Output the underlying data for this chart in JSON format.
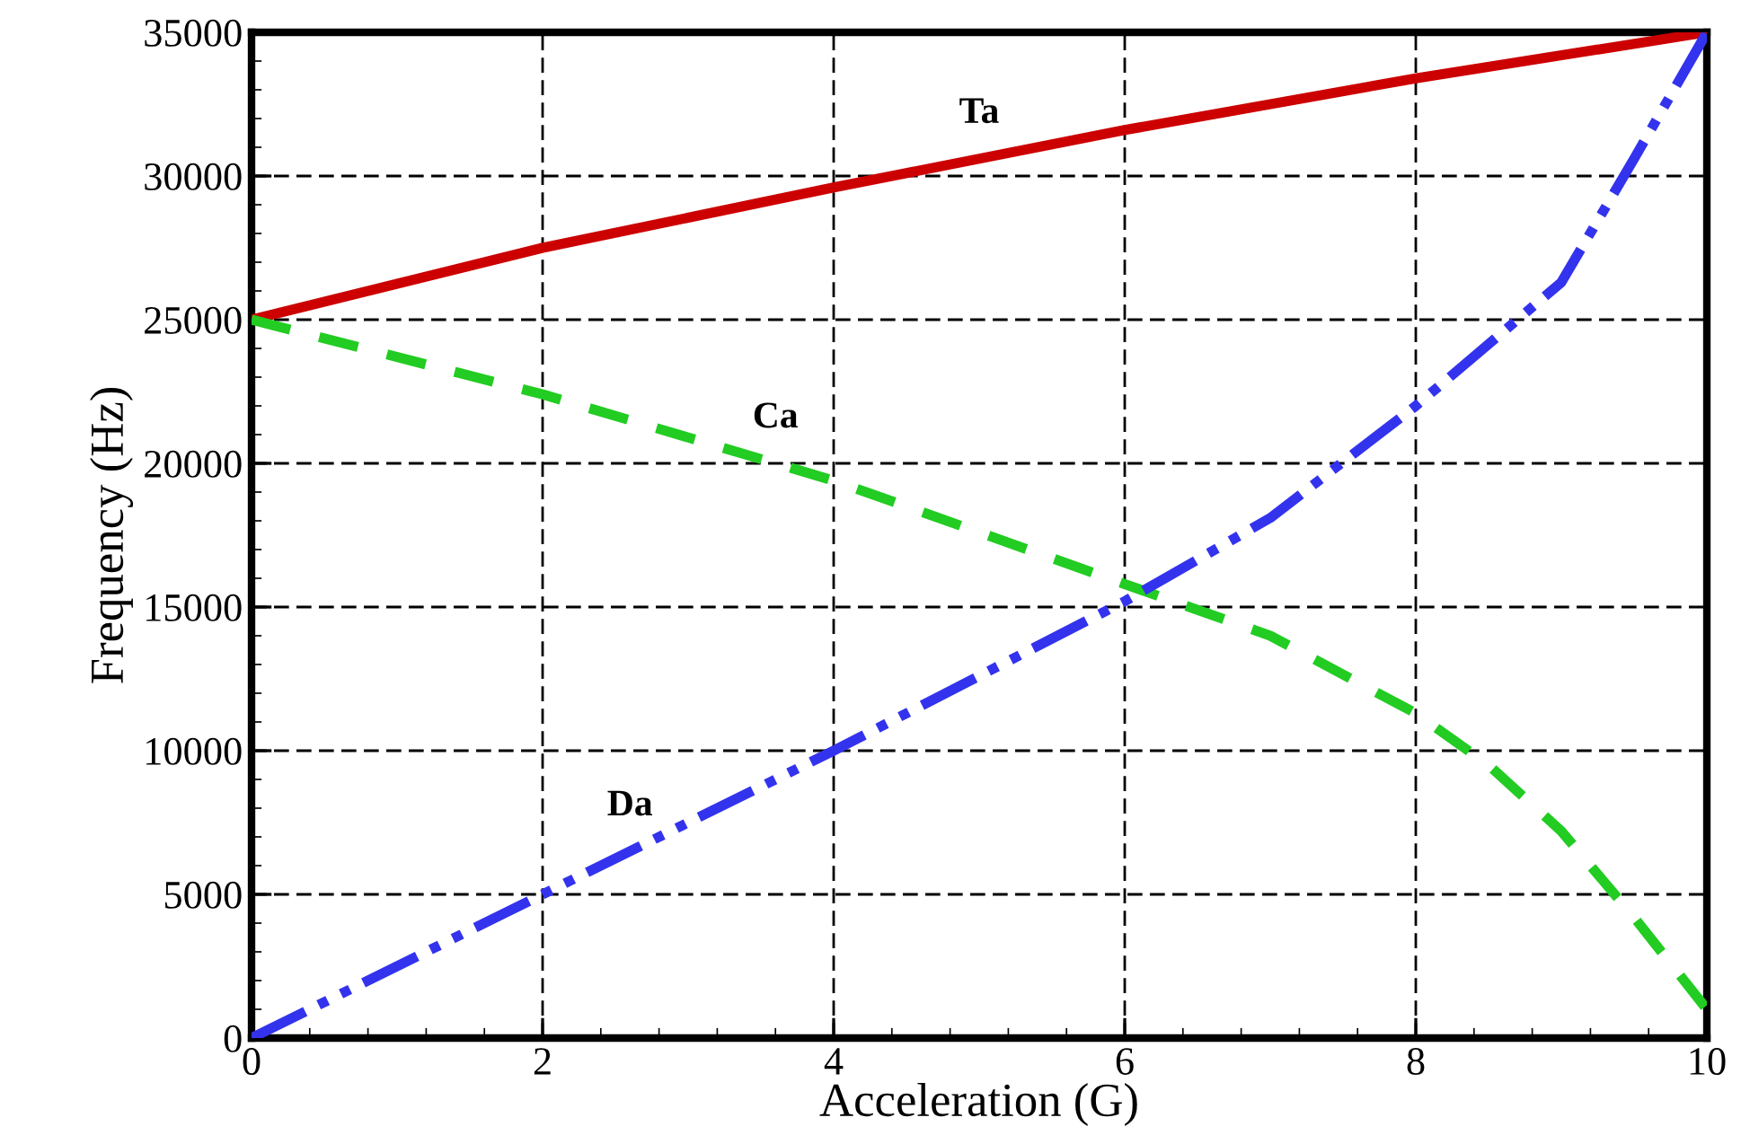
{
  "chart_data": {
    "type": "line",
    "xlabel": "Acceleration (G)",
    "ylabel": "Frequency (Hz)",
    "xlim": [
      0,
      10
    ],
    "xticks": [
      0,
      2,
      4,
      6,
      8,
      10
    ],
    "ylim": [
      0,
      35000
    ],
    "yticks": [
      0,
      5000,
      10000,
      15000,
      20000,
      25000,
      30000,
      35000
    ],
    "grid": true,
    "marker": "none",
    "series": [
      {
        "name": "Ta",
        "color": "#cc0000",
        "line_style": "solid",
        "x": [
          0,
          2,
          4,
          6,
          8,
          10
        ],
        "values": [
          25000,
          27500,
          29600,
          31600,
          33400,
          35000
        ]
      },
      {
        "name": "Ca",
        "color": "#22cc22",
        "line_style": "dashed",
        "x": [
          0,
          2,
          4,
          6,
          7,
          8,
          8.5,
          9,
          9.5,
          10
        ],
        "values": [
          25000,
          22400,
          19400,
          15800,
          14000,
          11300,
          9500,
          7200,
          4200,
          1000
        ]
      },
      {
        "name": "Da",
        "color": "#3333ee",
        "line_style": "dashdotdot",
        "x": [
          0,
          2,
          4,
          6,
          7,
          8,
          9,
          9.5,
          10
        ],
        "values": [
          0,
          5000,
          10000,
          15200,
          18100,
          22000,
          26300,
          30600,
          35000
        ]
      }
    ]
  }
}
